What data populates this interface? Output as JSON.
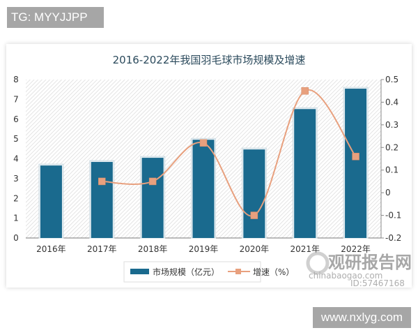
{
  "badges": {
    "top_left": "TG: MYYJJPP",
    "bottom_right": "www.nxlyg.com"
  },
  "watermark": {
    "name": "观研报告网",
    "site": "chinabaogao.com",
    "id": "ID:57467168"
  },
  "colors": {
    "bar": "#1a6a8e",
    "line": "#e8a07e",
    "marker": "#e8a07e",
    "title": "#2b4a5c"
  },
  "chart_data": {
    "type": "bar",
    "title": "2016-2022年我国羽毛球市场规模及增速",
    "categories": [
      "2016年",
      "2017年",
      "2018年",
      "2019年",
      "2020年",
      "2021年",
      "2022年"
    ],
    "series": [
      {
        "name": "市场规模（亿元）",
        "type": "bar",
        "axis": "left",
        "values": [
          3.66,
          3.84,
          4.05,
          4.96,
          4.47,
          6.51,
          7.54
        ]
      },
      {
        "name": "增速（%）",
        "type": "line",
        "axis": "right",
        "values": [
          null,
          0.05,
          0.05,
          0.22,
          -0.1,
          0.45,
          0.16
        ]
      }
    ],
    "left_axis": {
      "min": 0,
      "max": 8,
      "ticks": [
        "0",
        "1",
        "2",
        "3",
        "4",
        "5",
        "6",
        "7",
        "8"
      ]
    },
    "right_axis": {
      "min": -0.2,
      "max": 0.5,
      "ticks": [
        "-0.2",
        "-0.1",
        "0",
        "0.1",
        "0.2",
        "0.3",
        "0.4",
        "0.5"
      ]
    },
    "xlabel": "",
    "ylabel": "",
    "legend": [
      "市场规模（亿元）",
      "增速（%）"
    ],
    "legend_position": "bottom",
    "grid": false,
    "background": "diagonal hatch"
  }
}
